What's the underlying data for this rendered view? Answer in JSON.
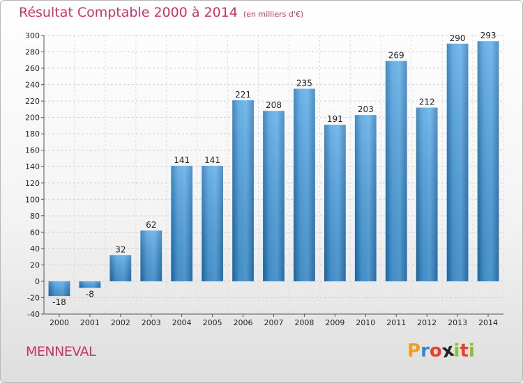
{
  "chart_data": {
    "type": "bar",
    "title": "Résultat Comptable 2000 à 2014",
    "subtitle": "(en milliers d'€)",
    "categories": [
      "2000",
      "2001",
      "2002",
      "2003",
      "2004",
      "2005",
      "2006",
      "2007",
      "2008",
      "2009",
      "2010",
      "2011",
      "2012",
      "2013",
      "2014"
    ],
    "values": [
      -18,
      -8,
      32,
      62,
      141,
      141,
      221,
      208,
      235,
      191,
      203,
      269,
      212,
      290,
      293
    ],
    "value_labels": [
      "-18",
      "-8",
      "32",
      "62",
      "141",
      "141",
      "221",
      "208",
      "235",
      "191",
      "203",
      "269",
      "212",
      "290",
      "293"
    ],
    "yticks": [
      "-40",
      "-20",
      "0",
      "20",
      "40",
      "60",
      "80",
      "100",
      "120",
      "140",
      "160",
      "180",
      "200",
      "220",
      "240",
      "260",
      "280",
      "300"
    ],
    "ylim": [
      -40,
      300
    ],
    "xlabel": "",
    "ylabel": "",
    "grid": true,
    "bar_color": "#3f8fd0"
  },
  "footer": {
    "commune": "MENNEVAL",
    "brand_letters": [
      "P",
      "r",
      "o",
      "x",
      "i",
      "t",
      "i"
    ],
    "brand_colors": [
      "#f0a020",
      "#2a8ad0",
      "#e8402a",
      "#222222",
      "#8ac030",
      "#e8402a",
      "#8ac030"
    ]
  }
}
